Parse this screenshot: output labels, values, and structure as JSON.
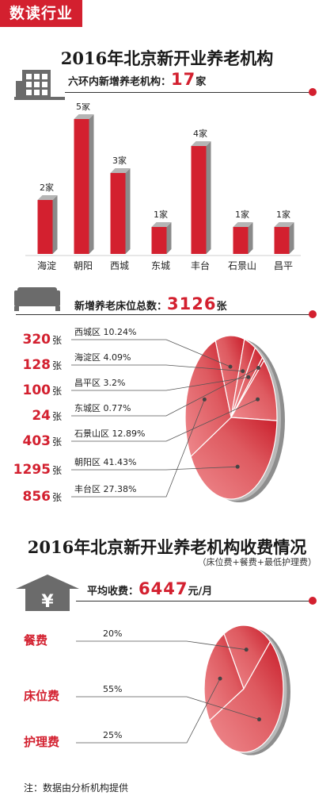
{
  "header": {
    "tag": "数读行业",
    "title1": "2016年北京新开业养老机构",
    "title2": "2016年北京新开业养老机构收费情况",
    "subtitle2": "（床位费+餐费+最低护理费）",
    "note": "注：数据由分析机构提供"
  },
  "stats": {
    "institutions": {
      "label": "六环内新增养老机构：",
      "value": "17",
      "unit": "家"
    },
    "beds": {
      "label": "新增养老床位总数：",
      "value": "3126",
      "unit": "张"
    },
    "fee": {
      "label": "平均收费：",
      "value": "6447",
      "unit": "元/月"
    },
    "yuan_symbol": "¥"
  },
  "chart_data": [
    {
      "type": "bar",
      "categories": [
        "海淀",
        "朝阳",
        "西城",
        "东城",
        "丰台",
        "石景山",
        "昌平"
      ],
      "values": [
        2,
        5,
        3,
        1,
        4,
        1,
        1
      ],
      "value_labels": [
        "2家",
        "5家",
        "3家",
        "1家",
        "4家",
        "1家",
        "1家"
      ],
      "ylim": [
        0,
        5
      ]
    },
    {
      "type": "pie",
      "slices": [
        {
          "label": "西城区",
          "percent_text": "10.24%",
          "percent": 10.24,
          "value": "320",
          "unit": "张"
        },
        {
          "label": "海淀区",
          "percent_text": "4.09%",
          "percent": 4.09,
          "value": "128",
          "unit": "张"
        },
        {
          "label": "昌平区",
          "percent_text": "3.2%",
          "percent": 3.2,
          "value": "100",
          "unit": "张"
        },
        {
          "label": "东城区",
          "percent_text": "0.77%",
          "percent": 0.77,
          "value": "24",
          "unit": "张"
        },
        {
          "label": "石景山区",
          "percent_text": "12.89%",
          "percent": 12.89,
          "value": "403",
          "unit": "张"
        },
        {
          "label": "朝阳区",
          "percent_text": "41.43%",
          "percent": 41.43,
          "value": "1295",
          "unit": "张"
        },
        {
          "label": "丰台区",
          "percent_text": "27.38%",
          "percent": 27.38,
          "value": "856",
          "unit": "张"
        }
      ]
    },
    {
      "type": "pie",
      "slices": [
        {
          "label": "餐费",
          "percent_text": "20%",
          "percent": 20
        },
        {
          "label": "床位费",
          "percent_text": "55%",
          "percent": 55
        },
        {
          "label": "护理费",
          "percent_text": "25%",
          "percent": 25
        }
      ]
    }
  ],
  "colors": {
    "accent": "#d3202f",
    "pie_light": "#ef8a8e",
    "pie_mid": "#de5a60",
    "pie_dark": "#c91e2b",
    "bar_shadow": "#8a8a8a"
  }
}
